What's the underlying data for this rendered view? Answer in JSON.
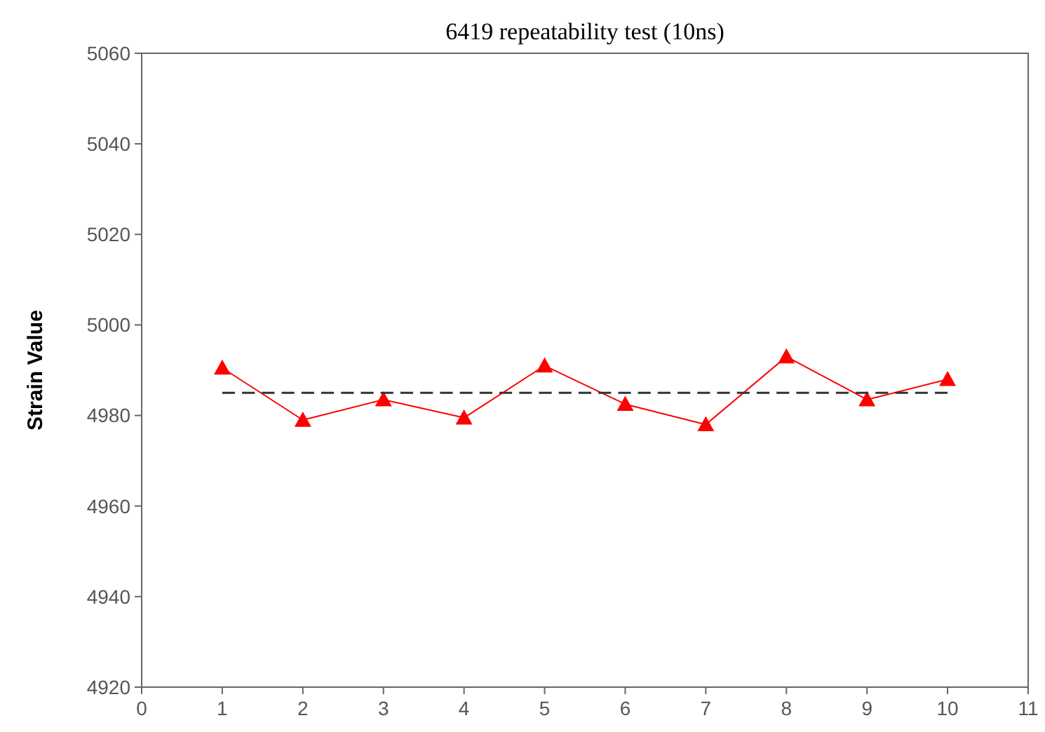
{
  "chart_data": {
    "type": "line",
    "title": "6419 repeatability test (10ns)",
    "ylabel": "Strain Value",
    "x": [
      1,
      2,
      3,
      4,
      5,
      6,
      7,
      8,
      9,
      10
    ],
    "series": [
      {
        "color": "#ff0000",
        "values": [
          4990.5,
          4979,
          4983.5,
          4979.5,
          4991,
          4982.5,
          4978,
          4993,
          4983.5,
          4988
        ],
        "marker": "triangle",
        "line_style": "solid"
      },
      {
        "color": "#333333",
        "x": [
          1,
          10
        ],
        "values": [
          4985,
          4985
        ],
        "marker": "none",
        "line_style": "dashed"
      }
    ],
    "xlim": [
      0,
      11
    ],
    "xticks": [
      0,
      1,
      2,
      3,
      4,
      5,
      6,
      7,
      8,
      9,
      10,
      11
    ],
    "ylim": [
      4920,
      5060
    ],
    "yticks": [
      4920,
      4940,
      4960,
      4980,
      5000,
      5020,
      5040,
      5060
    ],
    "grid": false
  }
}
